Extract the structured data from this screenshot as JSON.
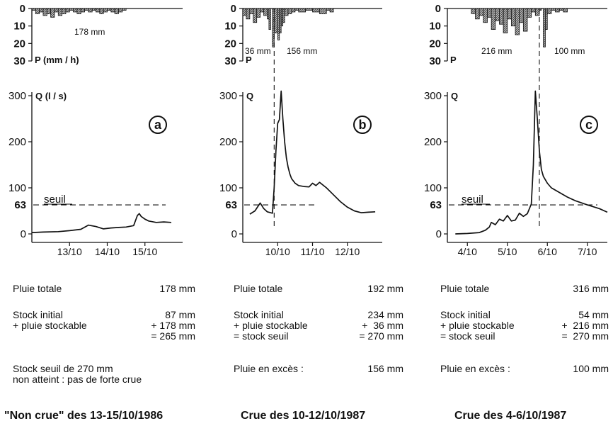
{
  "chart_data": [
    {
      "type": "line",
      "panel_label": "a",
      "rain": {
        "ylabel": "P (mm / h)",
        "yticks": [
          "0",
          "10",
          "20",
          "30"
        ],
        "ylim": [
          0,
          30
        ],
        "total_label": "178 mm",
        "x": [
          0,
          0.1,
          0.2,
          0.3,
          0.4,
          0.5,
          0.6,
          0.7,
          0.8,
          0.9,
          1.0,
          1.1,
          1.2,
          1.3,
          1.4,
          1.5,
          1.6,
          1.7,
          1.8,
          1.9,
          2.0,
          2.1,
          2.2,
          2.3,
          2.4,
          2.5
        ],
        "values": [
          1,
          3,
          2,
          4,
          3,
          5,
          2,
          4,
          3,
          2,
          1,
          2,
          3,
          2,
          1,
          2,
          1,
          2,
          3,
          2,
          1,
          2,
          3,
          2,
          1,
          0
        ]
      },
      "flow": {
        "ylabel": "Q (l / s)",
        "yticks": [
          "0",
          "100",
          "200",
          "300"
        ],
        "ylim": [
          0,
          300
        ],
        "threshold": 63,
        "threshold_tick": "63",
        "threshold_label": "seuil",
        "xlim": [
          0,
          4
        ],
        "xticks": [
          1,
          2,
          3
        ],
        "xtick_labels": [
          "13/10",
          "14/10",
          "15/10"
        ],
        "x": [
          0,
          0.3,
          0.7,
          1.0,
          1.3,
          1.5,
          1.7,
          1.9,
          2.1,
          2.3,
          2.5,
          2.7,
          2.8,
          2.85,
          2.9,
          3.0,
          3.1,
          3.3,
          3.5,
          3.7
        ],
        "values": [
          3,
          4,
          5,
          7,
          10,
          19,
          16,
          11,
          13,
          14,
          15,
          18,
          40,
          44,
          38,
          32,
          28,
          25,
          26,
          25
        ]
      }
    },
    {
      "type": "line",
      "panel_label": "b",
      "rain": {
        "ylabel": "P",
        "yticks": [
          "0",
          "10",
          "20",
          "30"
        ],
        "ylim": [
          0,
          30
        ],
        "annotations": [
          "36 mm",
          "156 mm"
        ],
        "x": [
          0,
          0.1,
          0.2,
          0.3,
          0.4,
          0.5,
          0.6,
          0.7,
          0.75,
          0.8,
          0.85,
          0.9,
          1.0,
          1.05,
          1.1,
          1.15,
          1.2,
          1.3,
          1.4,
          1.5,
          1.6,
          1.8,
          2.0,
          2.2,
          2.4,
          2.5,
          2.6
        ],
        "values": [
          4,
          6,
          3,
          8,
          5,
          2,
          4,
          6,
          12,
          0,
          22,
          14,
          18,
          14,
          10,
          8,
          4,
          3,
          2,
          1,
          2,
          1,
          2,
          3,
          1,
          2,
          0
        ]
      },
      "flow": {
        "ylabel": "Q",
        "yticks": [
          "0",
          "100",
          "200",
          "300"
        ],
        "ylim": [
          0,
          300
        ],
        "threshold": 63,
        "threshold_tick": "63",
        "xlim": [
          0,
          4
        ],
        "xticks": [
          1,
          2,
          3
        ],
        "xtick_labels": [
          "10/10",
          "11/10",
          "12/10"
        ],
        "x": [
          0.2,
          0.35,
          0.5,
          0.6,
          0.7,
          0.85,
          0.9,
          0.95,
          1.0,
          1.05,
          1.1,
          1.15,
          1.2,
          1.25,
          1.3,
          1.35,
          1.4,
          1.5,
          1.6,
          1.75,
          1.9,
          2.0,
          2.1,
          2.2,
          2.4,
          2.6,
          2.8,
          3.0,
          3.2,
          3.4,
          3.6,
          3.8
        ],
        "values": [
          43,
          50,
          67,
          55,
          48,
          45,
          100,
          180,
          240,
          248,
          310,
          250,
          200,
          165,
          145,
          130,
          120,
          110,
          105,
          103,
          102,
          110,
          105,
          112,
          100,
          85,
          70,
          58,
          50,
          46,
          47,
          48
        ]
      }
    },
    {
      "type": "line",
      "panel_label": "c",
      "rain": {
        "ylabel": "P",
        "yticks": [
          "0",
          "10",
          "20",
          "30"
        ],
        "ylim": [
          0,
          30
        ],
        "annotations": [
          "216 mm",
          "100 mm"
        ],
        "x": [
          0.6,
          0.7,
          0.8,
          0.9,
          1.0,
          1.1,
          1.2,
          1.3,
          1.4,
          1.5,
          1.6,
          1.7,
          1.8,
          1.9,
          2.0,
          2.1,
          2.2,
          2.3,
          2.35,
          2.4,
          2.45,
          2.5,
          2.6,
          2.7,
          2.8,
          2.9,
          3.0
        ],
        "values": [
          3,
          6,
          4,
          8,
          5,
          12,
          7,
          9,
          14,
          6,
          10,
          15,
          8,
          13,
          5,
          2,
          4,
          1,
          0,
          22,
          12,
          3,
          1,
          2,
          1,
          2,
          0
        ]
      },
      "flow": {
        "ylabel": "Q",
        "yticks": [
          "0",
          "100",
          "200",
          "300"
        ],
        "ylim": [
          0,
          300
        ],
        "threshold": 63,
        "threshold_tick": "63",
        "threshold_label": "seuil",
        "xlim": [
          0,
          4
        ],
        "xticks": [
          0.5,
          1.5,
          2.5,
          3.5
        ],
        "xtick_labels": [
          "4/10",
          "5/10",
          "6/10",
          "7/10"
        ],
        "x": [
          0.2,
          0.5,
          0.8,
          0.95,
          1.05,
          1.1,
          1.2,
          1.3,
          1.4,
          1.5,
          1.6,
          1.7,
          1.8,
          1.9,
          2.0,
          2.1,
          2.15,
          2.2,
          2.25,
          2.3,
          2.35,
          2.4,
          2.5,
          2.6,
          2.8,
          3.0,
          3.2,
          3.5,
          3.8,
          4.0
        ],
        "values": [
          0,
          1,
          3,
          8,
          15,
          25,
          20,
          32,
          28,
          40,
          28,
          30,
          45,
          38,
          44,
          65,
          150,
          310,
          250,
          180,
          140,
          125,
          110,
          100,
          90,
          80,
          72,
          63,
          55,
          47
        ]
      }
    }
  ],
  "info": [
    {
      "pluie_totale": "Pluie totale",
      "pluie_totale_val": "178 mm",
      "stock_initial": "Stock initial",
      "stock_initial_val": "87 mm",
      "pluie_stockable": "+ pluie stockable",
      "pluie_stockable_val": "+ 178 mm",
      "total_val": "= 265 mm",
      "note_line1": "Stock seuil de 270 mm",
      "note_line2": "non atteint : pas de forte crue",
      "title": "\"Non crue\" des 13-15/10/1986"
    },
    {
      "pluie_totale": "Pluie totale",
      "pluie_totale_val": "192 mm",
      "stock_initial": "Stock initial",
      "stock_initial_val": "234 mm",
      "pluie_stockable": "+ pluie stockable",
      "pluie_stockable_val": "+  36 mm",
      "stock_seuil": "= stock seuil",
      "stock_seuil_val": "= 270 mm",
      "excess": "Pluie en excès :",
      "excess_val": "156 mm",
      "title": "Crue des 10-12/10/1987"
    },
    {
      "pluie_totale": "Pluie totale",
      "pluie_totale_val": "316 mm",
      "stock_initial": "Stock initial",
      "stock_initial_val": "54 mm",
      "pluie_stockable": "+ pluie stockable",
      "pluie_stockable_val": "+  216 mm",
      "stock_seuil": "= stock seuil",
      "stock_seuil_val": "=  270 mm",
      "excess": "Pluie en excès :",
      "excess_val": "100 mm",
      "title": "Crue des 4-6/10/1987"
    }
  ]
}
